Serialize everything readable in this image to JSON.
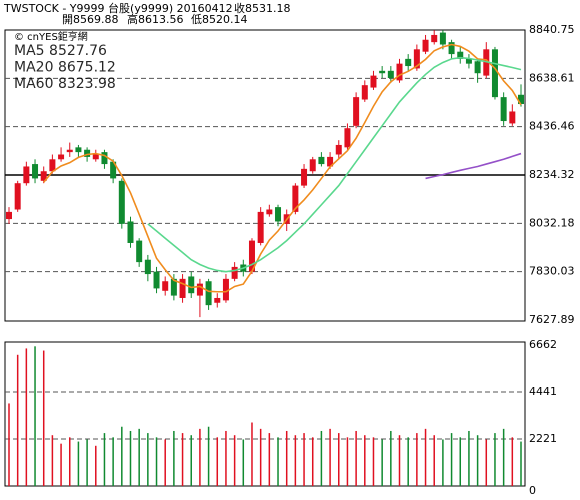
{
  "chart_data": {
    "type": "candlestick",
    "header": {
      "symbol": "TWSTOCK - Y9999  台股(y9999) 20160412",
      "close": "收8531.18",
      "open": "開8569.88",
      "high": "高8613.56",
      "low": "低8520.14"
    },
    "copyright": "© cnYES鉅亨網",
    "up_color": "#e01020",
    "down_color": "#108a30",
    "open": [
      8050,
      8090,
      8200,
      8280,
      8210,
      8250,
      8300,
      8330,
      8350,
      8340,
      8300,
      8330,
      8290,
      8210,
      8040,
      7960,
      7880,
      7830,
      7750,
      7800,
      7720,
      7810,
      7730,
      7790,
      7700,
      7710,
      7800,
      7860,
      7830,
      7950,
      8070,
      8100,
      8030,
      8080,
      8190,
      8250,
      8310,
      8270,
      8320,
      8350,
      8440,
      8550,
      8600,
      8670,
      8670,
      8630,
      8720,
      8680,
      8750,
      8790,
      8830,
      8790,
      8750,
      8720,
      8710,
      8650,
      8760,
      8560,
      8450,
      8569.88
    ],
    "high": [
      8100,
      8210,
      8290,
      8300,
      8270,
      8320,
      8350,
      8370,
      8360,
      8350,
      8340,
      8340,
      8300,
      8220,
      8060,
      7970,
      7900,
      7850,
      7810,
      7820,
      7820,
      7830,
      7800,
      7800,
      7740,
      7820,
      7870,
      7880,
      7970,
      8100,
      8110,
      8110,
      8090,
      8200,
      8280,
      8310,
      8330,
      8330,
      8380,
      8450,
      8580,
      8630,
      8670,
      8690,
      8690,
      8720,
      8740,
      8780,
      8820,
      8840,
      8840,
      8800,
      8770,
      8740,
      8720,
      8790,
      8770,
      8580,
      8530,
      8613.56
    ],
    "low": [
      8030,
      8080,
      8190,
      8200,
      8200,
      8240,
      8290,
      8310,
      8310,
      8290,
      8290,
      8260,
      8200,
      8010,
      7930,
      7850,
      7790,
      7740,
      7730,
      7710,
      7700,
      7720,
      7640,
      7670,
      7680,
      7700,
      7790,
      7810,
      7820,
      7940,
      8060,
      8020,
      8000,
      8070,
      8180,
      8240,
      8270,
      8260,
      8300,
      8340,
      8430,
      8540,
      8590,
      8640,
      8620,
      8620,
      8670,
      8670,
      8740,
      8780,
      8760,
      8720,
      8700,
      8680,
      8620,
      8640,
      8550,
      8440,
      8440,
      8520.14
    ],
    "close": [
      8080,
      8200,
      8270,
      8220,
      8250,
      8300,
      8320,
      8340,
      8330,
      8310,
      8320,
      8280,
      8220,
      8030,
      7950,
      7870,
      7820,
      7760,
      7790,
      7730,
      7800,
      7740,
      7780,
      7690,
      7720,
      7800,
      7850,
      7830,
      7960,
      8080,
      8090,
      8040,
      8070,
      8190,
      8260,
      8300,
      8280,
      8310,
      8360,
      8430,
      8560,
      8610,
      8650,
      8660,
      8640,
      8700,
      8690,
      8760,
      8800,
      8820,
      8780,
      8740,
      8720,
      8700,
      8660,
      8760,
      8560,
      8460,
      8500,
      8531.18
    ],
    "volume": [
      3900,
      6200,
      6500,
      6600,
      6400,
      2400,
      2000,
      2300,
      2100,
      2200,
      1900,
      2500,
      2300,
      2800,
      2600,
      2700,
      2500,
      2300,
      2200,
      2600,
      2500,
      2400,
      2700,
      2800,
      2300,
      2600,
      2400,
      2200,
      3000,
      2700,
      2500,
      2300,
      2600,
      2400,
      2500,
      2300,
      2600,
      2700,
      2500,
      2300,
      2600,
      2400,
      2300,
      2200,
      2600,
      2400,
      2300,
      2500,
      2700,
      2400,
      2200,
      2500,
      2300,
      2600,
      2400,
      2200,
      2500,
      2700,
      2300,
      2100
    ],
    "series": [
      {
        "name": "MA5",
        "color": "#f08c1e",
        "values": [
          null,
          null,
          null,
          null,
          8204,
          8248,
          8272,
          8286,
          8308,
          8320,
          8324,
          8316,
          8292,
          8232,
          8160,
          8070,
          7978,
          7886,
          7838,
          7794,
          7780,
          7764,
          7768,
          7748,
          7746,
          7746,
          7768,
          7778,
          7832,
          7904,
          7962,
          8000,
          8048,
          8094,
          8130,
          8172,
          8220,
          8268,
          8302,
          8336,
          8388,
          8454,
          8522,
          8582,
          8624,
          8652,
          8668,
          8690,
          8718,
          8754,
          8770,
          8780,
          8772,
          8752,
          8720,
          8716,
          8680,
          8628,
          8588,
          8527.76
        ]
      },
      {
        "name": "MA20",
        "color": "#5ad88e",
        "values": [
          null,
          null,
          null,
          null,
          null,
          null,
          null,
          null,
          null,
          null,
          null,
          null,
          null,
          null,
          null,
          null,
          8030,
          8000,
          7970,
          7940,
          7910,
          7880,
          7860,
          7845,
          7835,
          7830,
          7835,
          7845,
          7860,
          7880,
          7905,
          7930,
          7960,
          7995,
          8030,
          8070,
          8110,
          8150,
          8190,
          8240,
          8290,
          8340,
          8390,
          8440,
          8490,
          8540,
          8580,
          8620,
          8655,
          8685,
          8705,
          8720,
          8725,
          8722,
          8715,
          8708,
          8700,
          8692,
          8684,
          8675.12
        ]
      },
      {
        "name": "MA60",
        "color": "#9450c8",
        "values": [
          null,
          null,
          null,
          null,
          null,
          null,
          null,
          null,
          null,
          null,
          null,
          null,
          null,
          null,
          null,
          null,
          null,
          null,
          null,
          null,
          null,
          null,
          null,
          null,
          null,
          null,
          null,
          null,
          null,
          null,
          null,
          null,
          null,
          null,
          null,
          null,
          null,
          null,
          null,
          null,
          null,
          null,
          null,
          null,
          null,
          null,
          null,
          null,
          8220,
          8228,
          8236,
          8245,
          8254,
          8262,
          8270,
          8280,
          8290,
          8300,
          8312,
          8323.98
        ]
      }
    ],
    "ylim": [
      7627.89,
      8840.75
    ],
    "yticks": [
      7627.89,
      7830.03,
      8032.18,
      8234.32,
      8436.46,
      8638.61,
      8840.75
    ],
    "volume_ylim": [
      0,
      6662
    ],
    "volume_yticks": [
      0,
      2221,
      4441,
      6662
    ]
  }
}
